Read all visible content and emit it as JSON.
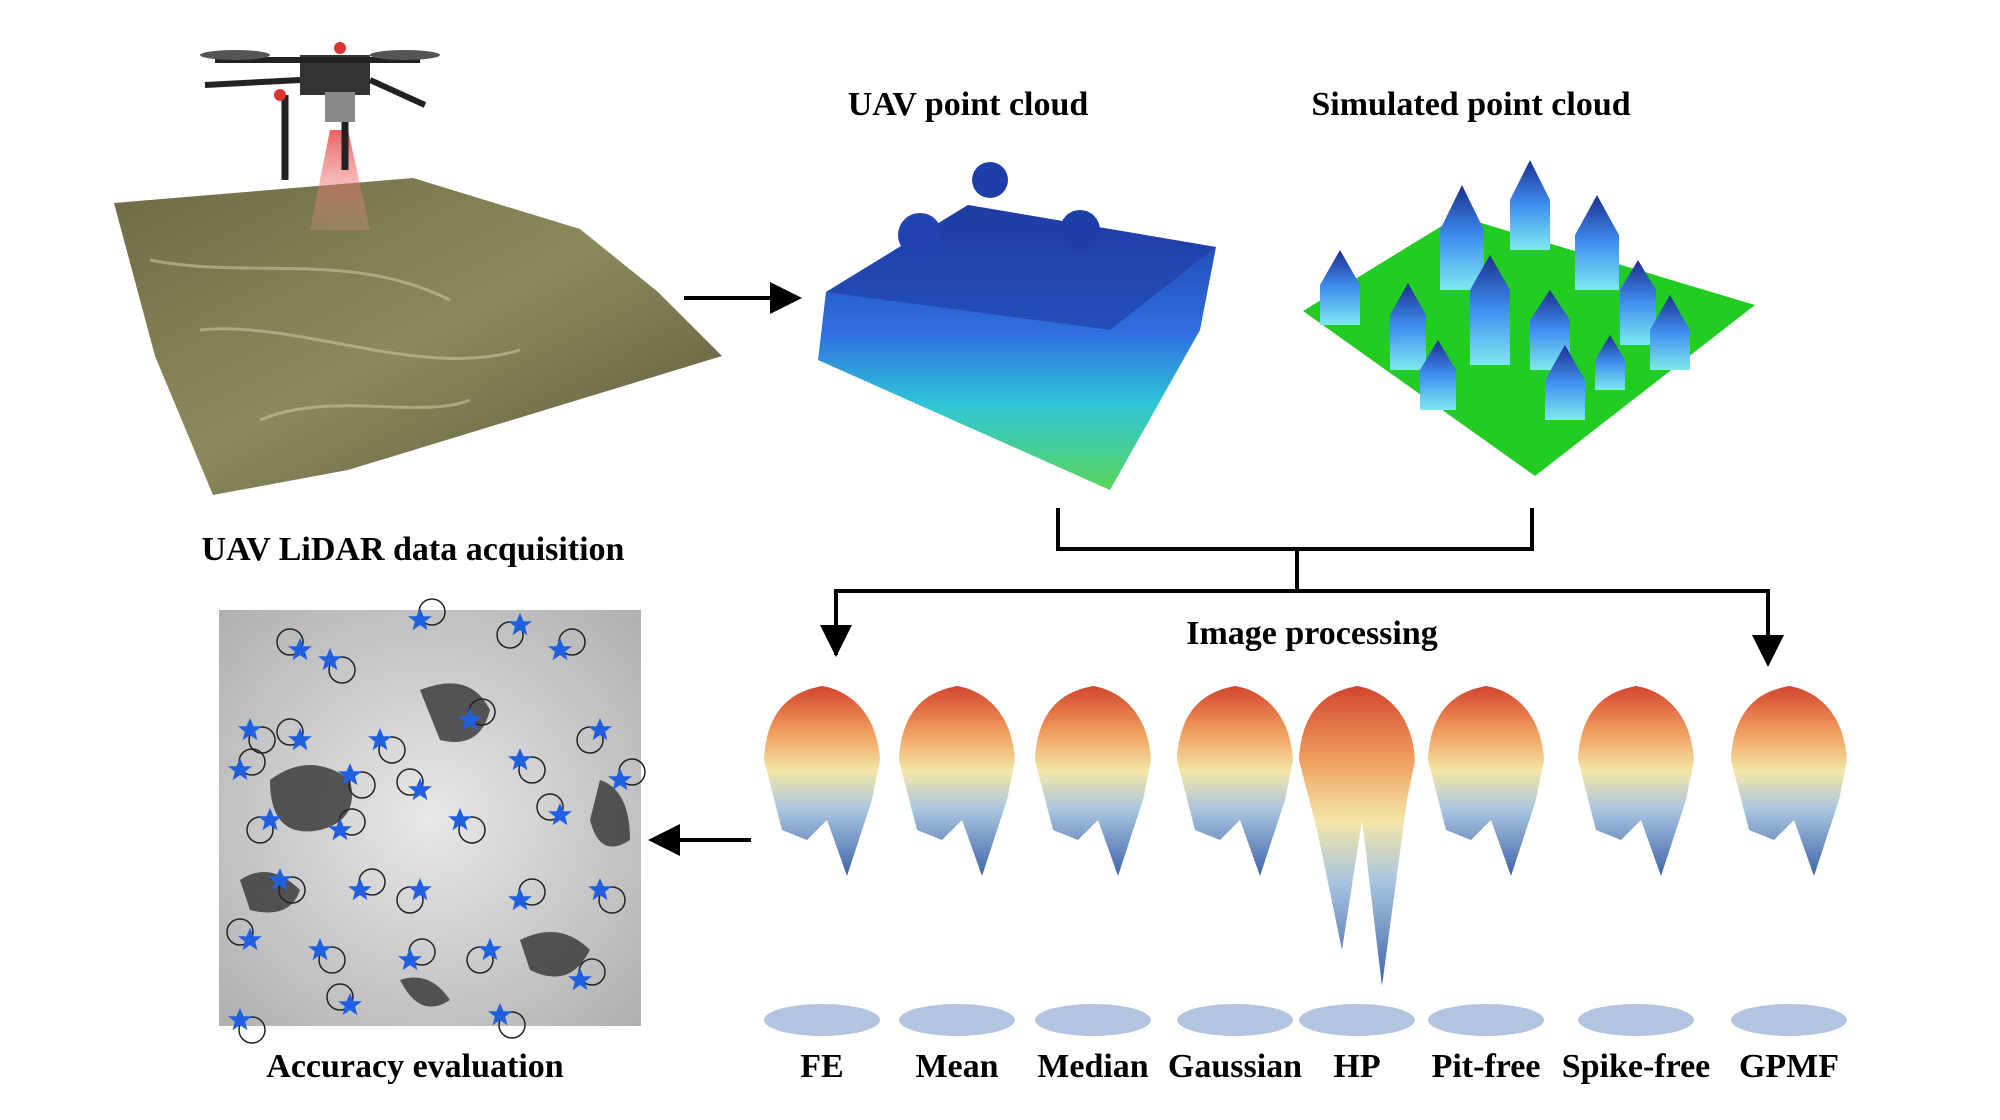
{
  "panels": {
    "acquisition": {
      "label": "UAV LiDAR data acquisition"
    },
    "uav_cloud": {
      "label": "UAV point cloud"
    },
    "simulated_cloud": {
      "label": "Simulated point cloud"
    },
    "processing": {
      "label": "Image processing"
    },
    "evaluation": {
      "label": "Accuracy evaluation"
    }
  },
  "methods": [
    "FE",
    "Mean",
    "Median",
    "Gaussian",
    "HP",
    "Pit-free",
    "Spike-free",
    "GPMF"
  ]
}
